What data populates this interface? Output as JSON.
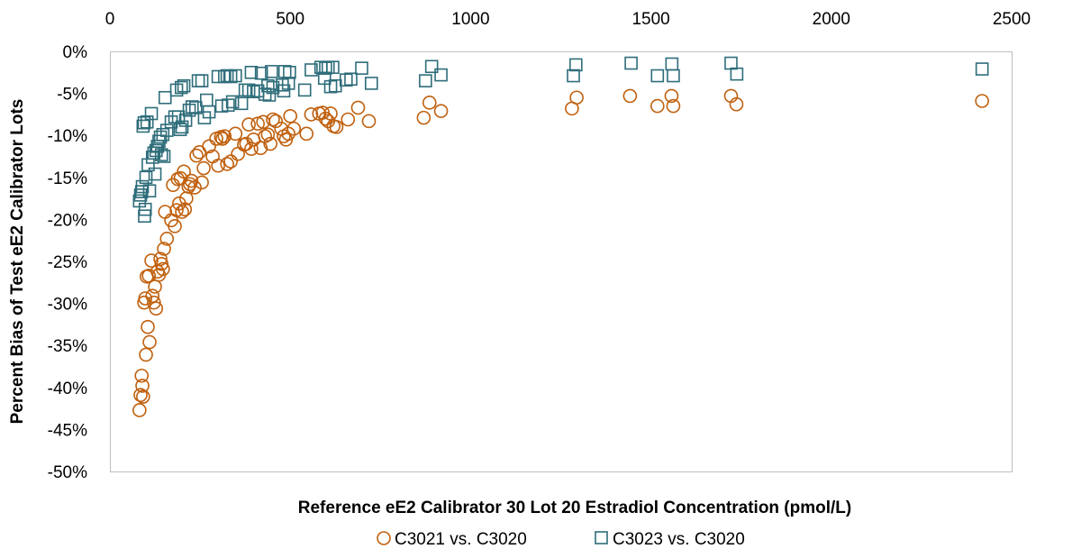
{
  "chart_data": {
    "type": "scatter",
    "xlabel": "Reference eE2 Calibrator 30 Lot 20 Estradiol Concentration (pmol/L)",
    "ylabel": "Percent Bias of Test eE2 Calibrator Lots",
    "xlim": [
      0,
      2500
    ],
    "ylim": [
      -50,
      0
    ],
    "x_axis_position": "top",
    "x_ticks": [
      0,
      500,
      1000,
      1500,
      2000,
      2500
    ],
    "x_tick_labels": [
      "0",
      "500",
      "1000",
      "1500",
      "2000",
      "2500"
    ],
    "y_ticks": [
      0,
      -5,
      -10,
      -15,
      -20,
      -25,
      -30,
      -35,
      -40,
      -45,
      -50
    ],
    "y_tick_labels": [
      "0%",
      "-5%",
      "-10%",
      "-15%",
      "-20%",
      "-25%",
      "-30%",
      "-35%",
      "-40%",
      "-45%",
      "-50%"
    ],
    "grid": false,
    "legend_position": "bottom",
    "series": [
      {
        "name": "C3021 vs. C3020",
        "marker": "circle",
        "color": "#C0600E",
        "points": [
          [
            82,
            -42.7
          ],
          [
            85,
            -40.9
          ],
          [
            88,
            -38.6
          ],
          [
            90,
            -39.8
          ],
          [
            92,
            -41.1
          ],
          [
            95,
            -29.9
          ],
          [
            98,
            -29.4
          ],
          [
            100,
            -36.1
          ],
          [
            102,
            -26.8
          ],
          [
            105,
            -32.8
          ],
          [
            108,
            -26.7
          ],
          [
            110,
            -34.6
          ],
          [
            115,
            -24.9
          ],
          [
            118,
            -29.1
          ],
          [
            122,
            -29.9
          ],
          [
            125,
            -28.0
          ],
          [
            128,
            -30.6
          ],
          [
            132,
            -26.2
          ],
          [
            136,
            -26.6
          ],
          [
            140,
            -24.7
          ],
          [
            143,
            -25.3
          ],
          [
            147,
            -25.9
          ],
          [
            150,
            -23.5
          ],
          [
            153,
            -19.1
          ],
          [
            158,
            -22.3
          ],
          [
            170,
            -20.1
          ],
          [
            175,
            -15.9
          ],
          [
            180,
            -20.8
          ],
          [
            185,
            -18.9
          ],
          [
            188,
            -15.2
          ],
          [
            192,
            -18.1
          ],
          [
            196,
            -15.1
          ],
          [
            200,
            -19.1
          ],
          [
            205,
            -14.3
          ],
          [
            208,
            -18.8
          ],
          [
            212,
            -17.5
          ],
          [
            218,
            -16.1
          ],
          [
            222,
            -15.8
          ],
          [
            226,
            -15.4
          ],
          [
            235,
            -16.2
          ],
          [
            240,
            -12.4
          ],
          [
            248,
            -12.0
          ],
          [
            255,
            -15.6
          ],
          [
            260,
            -13.9
          ],
          [
            275,
            -11.3
          ],
          [
            285,
            -12.5
          ],
          [
            295,
            -10.4
          ],
          [
            300,
            -13.6
          ],
          [
            308,
            -10.2
          ],
          [
            312,
            -10.4
          ],
          [
            318,
            -10.1
          ],
          [
            325,
            -13.4
          ],
          [
            335,
            -13.1
          ],
          [
            348,
            -9.8
          ],
          [
            355,
            -12.2
          ],
          [
            372,
            -11.1
          ],
          [
            378,
            -11.0
          ],
          [
            385,
            -8.7
          ],
          [
            392,
            -11.6
          ],
          [
            398,
            -10.5
          ],
          [
            410,
            -8.6
          ],
          [
            418,
            -11.5
          ],
          [
            425,
            -8.4
          ],
          [
            430,
            -10.1
          ],
          [
            438,
            -9.9
          ],
          [
            445,
            -11.0
          ],
          [
            452,
            -8.1
          ],
          [
            460,
            -8.3
          ],
          [
            475,
            -9.2
          ],
          [
            482,
            -10.1
          ],
          [
            488,
            -10.5
          ],
          [
            495,
            -9.8
          ],
          [
            500,
            -7.7
          ],
          [
            510,
            -9.2
          ],
          [
            545,
            -9.8
          ],
          [
            558,
            -7.5
          ],
          [
            580,
            -7.4
          ],
          [
            590,
            -7.3
          ],
          [
            598,
            -8.0
          ],
          [
            605,
            -8.3
          ],
          [
            612,
            -7.4
          ],
          [
            620,
            -8.9
          ],
          [
            628,
            -9.0
          ],
          [
            660,
            -8.1
          ],
          [
            688,
            -6.7
          ],
          [
            718,
            -8.3
          ],
          [
            870,
            -7.9
          ],
          [
            886,
            -6.1
          ],
          [
            918,
            -7.1
          ],
          [
            1281,
            -6.8
          ],
          [
            1294,
            -5.5
          ],
          [
            1442,
            -5.3
          ],
          [
            1518,
            -6.5
          ],
          [
            1557,
            -5.3
          ],
          [
            1562,
            -6.5
          ],
          [
            1722,
            -5.3
          ],
          [
            1737,
            -6.3
          ],
          [
            2418,
            -5.9
          ]
        ]
      },
      {
        "name": "C3023 vs. C3020",
        "marker": "square",
        "color": "#2E6D7A",
        "points": [
          [
            82,
            -17.8
          ],
          [
            85,
            -17.1
          ],
          [
            88,
            -16.7
          ],
          [
            90,
            -16.1
          ],
          [
            92,
            -8.9
          ],
          [
            95,
            -8.5
          ],
          [
            96,
            -19.6
          ],
          [
            98,
            -18.8
          ],
          [
            100,
            -15.0
          ],
          [
            103,
            -8.4
          ],
          [
            106,
            -13.5
          ],
          [
            110,
            -16.6
          ],
          [
            115,
            -7.4
          ],
          [
            118,
            -12.6
          ],
          [
            122,
            -12.1
          ],
          [
            125,
            -14.6
          ],
          [
            128,
            -11.8
          ],
          [
            132,
            -11.3
          ],
          [
            136,
            -10.7
          ],
          [
            140,
            -10.2
          ],
          [
            143,
            -12.3
          ],
          [
            147,
            -9.9
          ],
          [
            150,
            -12.5
          ],
          [
            153,
            -5.5
          ],
          [
            158,
            -9.4
          ],
          [
            170,
            -8.4
          ],
          [
            180,
            -7.8
          ],
          [
            185,
            -4.6
          ],
          [
            190,
            -7.8
          ],
          [
            195,
            -9.3
          ],
          [
            198,
            -4.3
          ],
          [
            200,
            -9.0
          ],
          [
            205,
            -4.1
          ],
          [
            210,
            -8.2
          ],
          [
            220,
            -7.0
          ],
          [
            228,
            -6.6
          ],
          [
            238,
            -6.7
          ],
          [
            245,
            -3.5
          ],
          [
            255,
            -3.5
          ],
          [
            262,
            -7.9
          ],
          [
            268,
            -5.8
          ],
          [
            275,
            -7.2
          ],
          [
            300,
            -3.0
          ],
          [
            310,
            -6.5
          ],
          [
            318,
            -3.0
          ],
          [
            325,
            -2.9
          ],
          [
            328,
            -6.4
          ],
          [
            335,
            -3.0
          ],
          [
            340,
            -6.0
          ],
          [
            348,
            -2.9
          ],
          [
            365,
            -6.2
          ],
          [
            375,
            -4.6
          ],
          [
            385,
            -4.6
          ],
          [
            392,
            -2.5
          ],
          [
            398,
            -4.8
          ],
          [
            410,
            -4.7
          ],
          [
            420,
            -2.6
          ],
          [
            430,
            -5.1
          ],
          [
            438,
            -4.1
          ],
          [
            442,
            -5.2
          ],
          [
            448,
            -2.4
          ],
          [
            452,
            -4.3
          ],
          [
            478,
            -4.0
          ],
          [
            482,
            -4.7
          ],
          [
            485,
            -2.4
          ],
          [
            495,
            -3.8
          ],
          [
            498,
            -2.5
          ],
          [
            540,
            -4.6
          ],
          [
            558,
            -2.2
          ],
          [
            585,
            -1.9
          ],
          [
            595,
            -3.2
          ],
          [
            598,
            -2.0
          ],
          [
            605,
            -1.9
          ],
          [
            612,
            -4.2
          ],
          [
            618,
            -1.9
          ],
          [
            625,
            -4.1
          ],
          [
            655,
            -3.4
          ],
          [
            668,
            -3.3
          ],
          [
            698,
            -2.0
          ],
          [
            725,
            -3.8
          ],
          [
            875,
            -3.5
          ],
          [
            892,
            -1.8
          ],
          [
            918,
            -2.8
          ],
          [
            1285,
            -2.9
          ],
          [
            1292,
            -1.6
          ],
          [
            1445,
            -1.4
          ],
          [
            1518,
            -2.9
          ],
          [
            1558,
            -1.5
          ],
          [
            1562,
            -2.9
          ],
          [
            1722,
            -1.4
          ],
          [
            1738,
            -2.7
          ],
          [
            2418,
            -2.1
          ]
        ]
      }
    ]
  }
}
